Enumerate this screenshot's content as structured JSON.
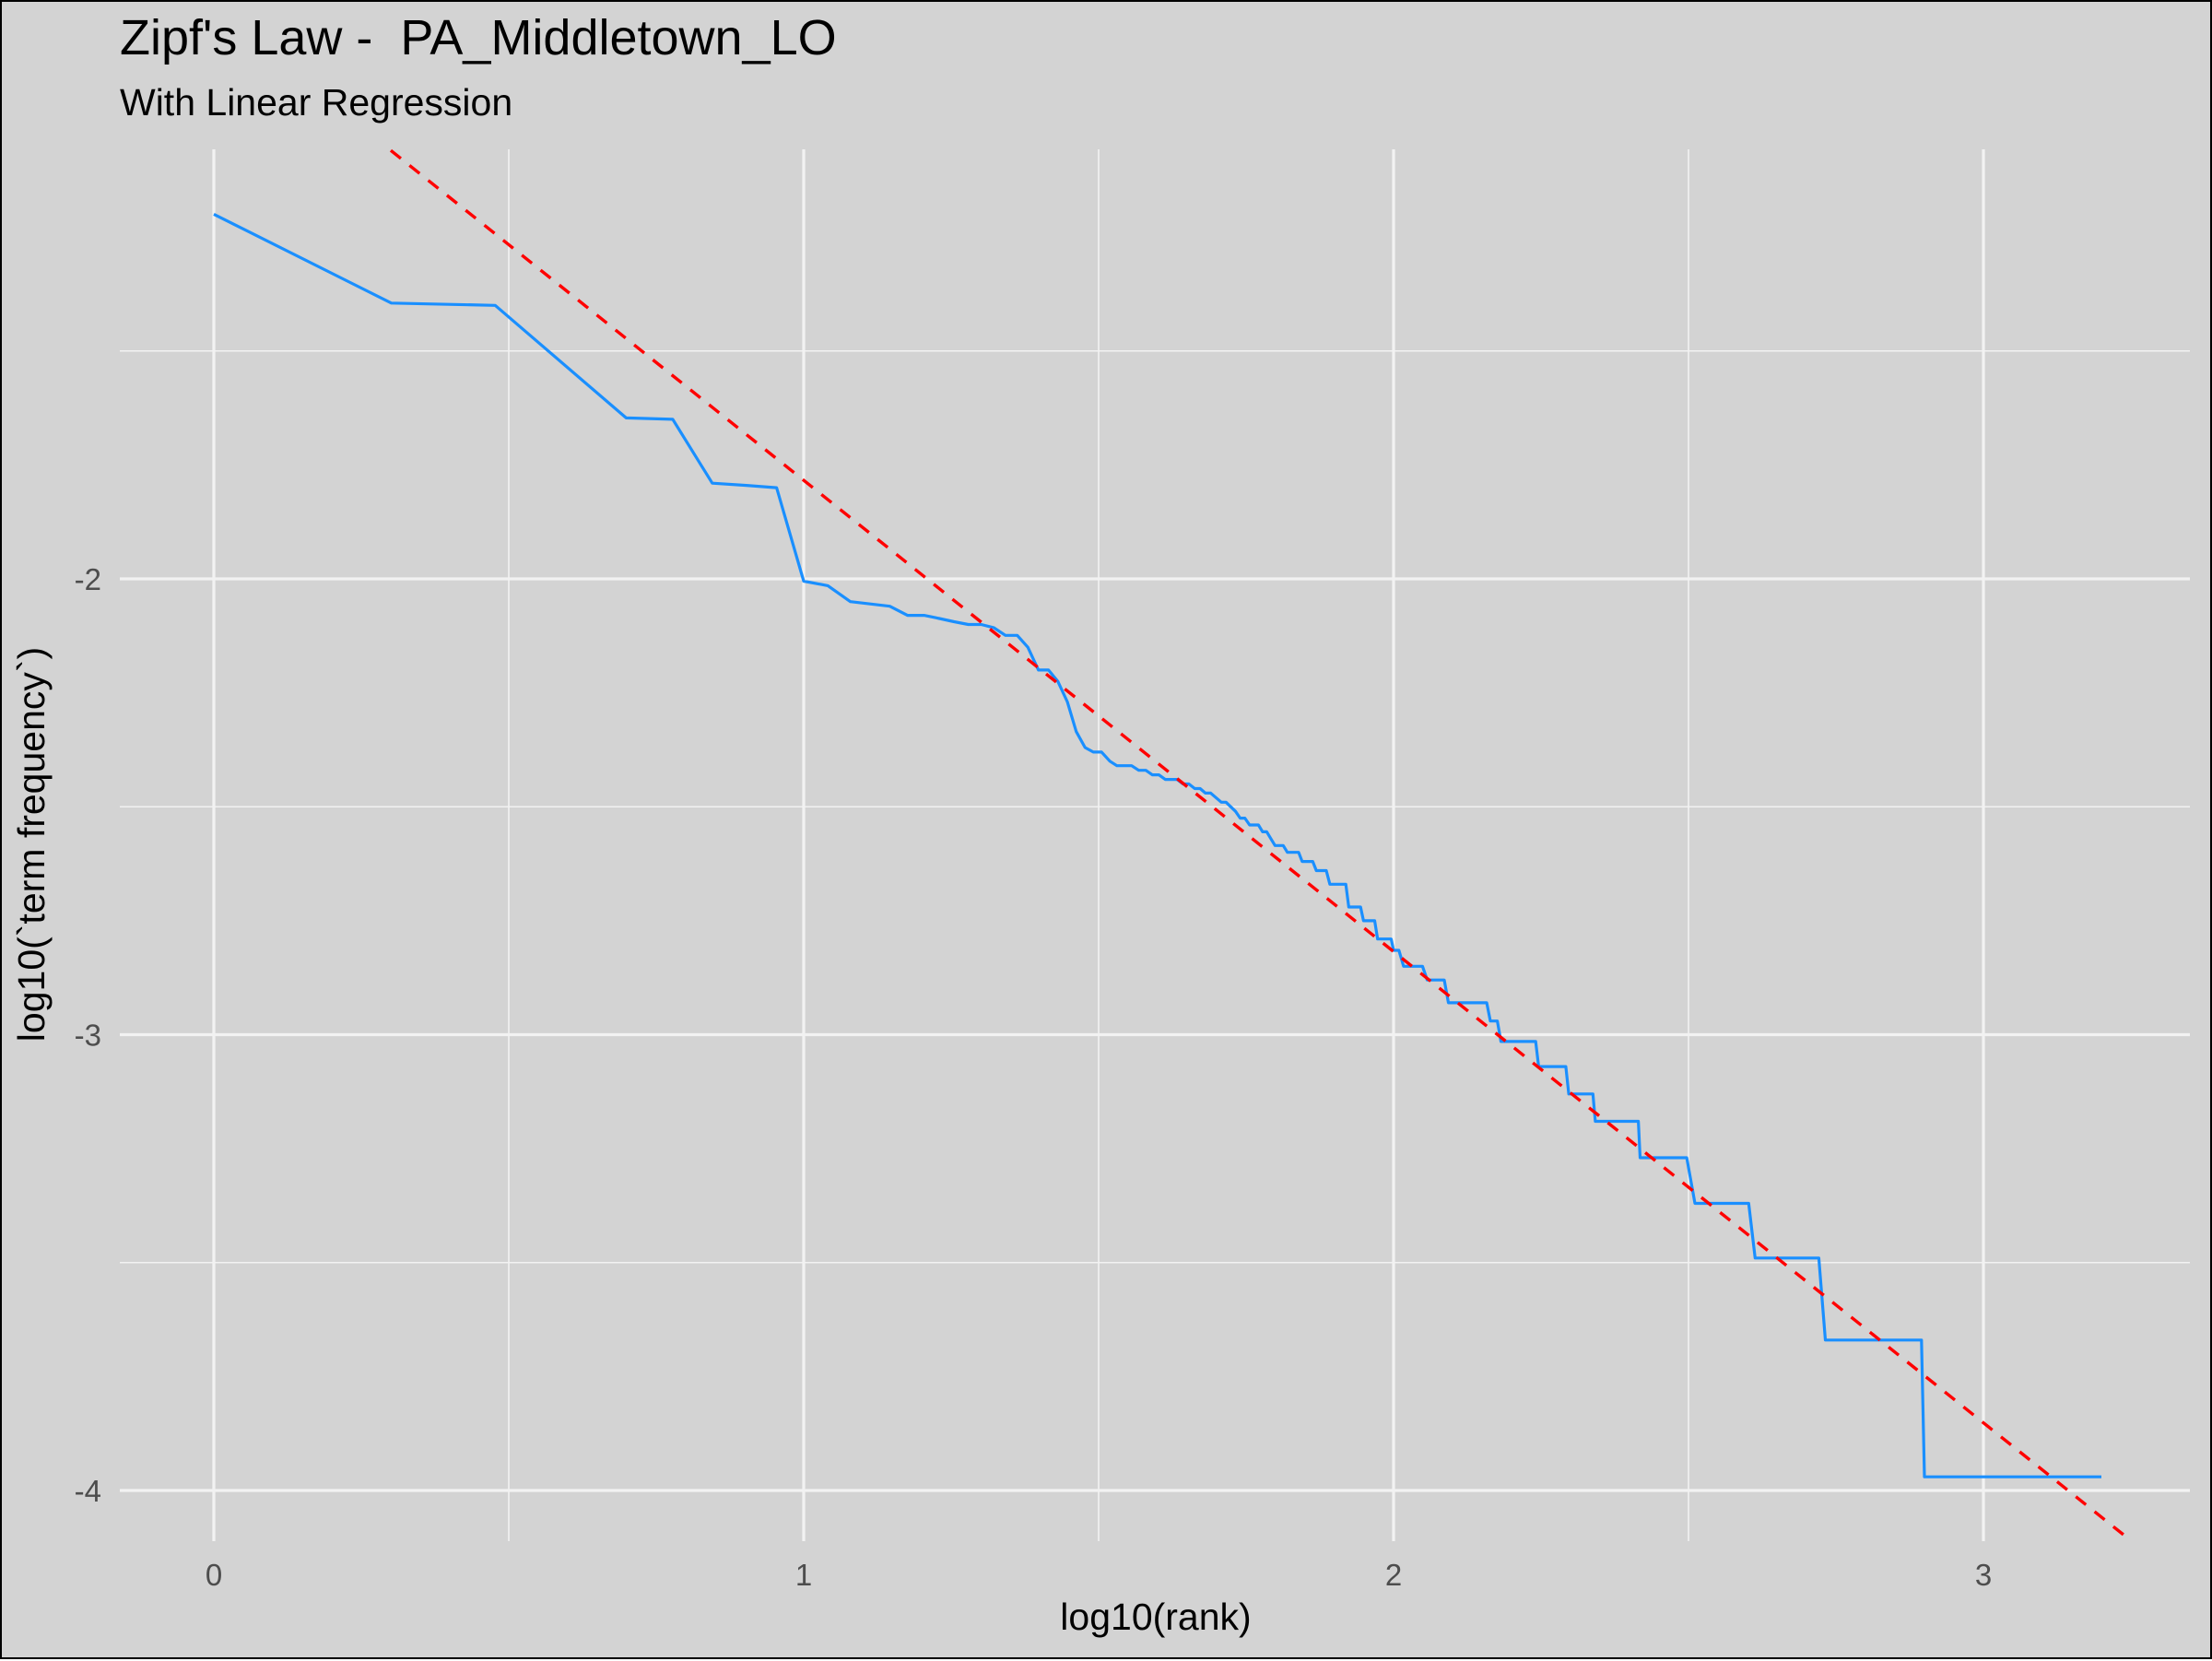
{
  "title": "Zipf's Law -  PA_Middletown_LO",
  "subtitle": "With Linear Regression",
  "colors": {
    "panel_background": "#d3d3d3",
    "grid": "#f2f2f2",
    "series_line": "#1a8fff",
    "regression_line": "#ff0000"
  },
  "chart_data": {
    "type": "line",
    "title": "Zipf's Law -  PA_Middletown_LO",
    "subtitle": "With Linear Regression",
    "xlabel": "log10(rank)",
    "ylabel": "log10(`term frequency`)",
    "xlim": [
      -0.16,
      3.37
    ],
    "ylim": [
      -4.06,
      -1.0
    ],
    "x_ticks": [
      0,
      1,
      2,
      3
    ],
    "x_tick_labels": [
      "0",
      "1",
      "2",
      "3"
    ],
    "y_ticks": [
      -2,
      -3,
      -4
    ],
    "y_tick_labels": [
      "-2",
      "-3",
      "-4"
    ],
    "grid": true,
    "legend": "none",
    "series": [
      {
        "style": "solid",
        "color": "#1a8fff",
        "points": [
          [
            0.0,
            -1.2
          ],
          [
            0.301,
            -1.395
          ],
          [
            0.477,
            -1.4
          ],
          [
            0.699,
            -1.647
          ],
          [
            0.778,
            -1.65
          ],
          [
            0.845,
            -1.79
          ],
          [
            0.903,
            -1.795
          ],
          [
            0.954,
            -1.8
          ],
          [
            1.0,
            -2.005
          ],
          [
            1.041,
            -2.015
          ],
          [
            1.079,
            -2.05
          ],
          [
            1.146,
            -2.06
          ],
          [
            1.176,
            -2.08
          ],
          [
            1.204,
            -2.08
          ],
          [
            1.23,
            -2.087
          ],
          [
            1.255,
            -2.094
          ],
          [
            1.279,
            -2.1
          ],
          [
            1.301,
            -2.1
          ],
          [
            1.322,
            -2.107
          ],
          [
            1.342,
            -2.124
          ],
          [
            1.362,
            -2.124
          ],
          [
            1.38,
            -2.15
          ],
          [
            1.398,
            -2.2
          ],
          [
            1.415,
            -2.2
          ],
          [
            1.431,
            -2.225
          ],
          [
            1.447,
            -2.27
          ],
          [
            1.462,
            -2.335
          ],
          [
            1.477,
            -2.37
          ],
          [
            1.491,
            -2.38
          ],
          [
            1.505,
            -2.38
          ],
          [
            1.519,
            -2.4
          ],
          [
            1.531,
            -2.41
          ],
          [
            1.544,
            -2.41
          ],
          [
            1.556,
            -2.41
          ],
          [
            1.568,
            -2.42
          ],
          [
            1.58,
            -2.42
          ],
          [
            1.591,
            -2.43
          ],
          [
            1.602,
            -2.43
          ],
          [
            1.613,
            -2.44
          ],
          [
            1.623,
            -2.44
          ],
          [
            1.633,
            -2.44
          ],
          [
            1.643,
            -2.45
          ],
          [
            1.653,
            -2.45
          ],
          [
            1.663,
            -2.46
          ],
          [
            1.672,
            -2.46
          ],
          [
            1.681,
            -2.47
          ],
          [
            1.69,
            -2.47
          ],
          [
            1.699,
            -2.48
          ],
          [
            1.708,
            -2.49
          ],
          [
            1.716,
            -2.49
          ],
          [
            1.724,
            -2.5
          ],
          [
            1.732,
            -2.51
          ],
          [
            1.74,
            -2.525
          ],
          [
            1.748,
            -2.525
          ],
          [
            1.756,
            -2.54
          ],
          [
            1.763,
            -2.54
          ],
          [
            1.771,
            -2.54
          ],
          [
            1.778,
            -2.555
          ],
          [
            1.785,
            -2.555
          ],
          [
            1.792,
            -2.57
          ],
          [
            1.799,
            -2.585
          ],
          [
            1.806,
            -2.585
          ],
          [
            1.813,
            -2.585
          ],
          [
            1.82,
            -2.6
          ],
          [
            1.826,
            -2.6
          ],
          [
            1.833,
            -2.6
          ],
          [
            1.839,
            -2.6
          ],
          [
            1.845,
            -2.62
          ],
          [
            1.851,
            -2.62
          ],
          [
            1.857,
            -2.62
          ],
          [
            1.863,
            -2.62
          ],
          [
            1.869,
            -2.64
          ],
          [
            1.875,
            -2.64
          ],
          [
            1.881,
            -2.64
          ],
          [
            1.886,
            -2.64
          ],
          [
            1.892,
            -2.67
          ],
          [
            1.898,
            -2.67
          ],
          [
            1.903,
            -2.67
          ],
          [
            1.908,
            -2.67
          ],
          [
            1.914,
            -2.67
          ],
          [
            1.919,
            -2.67
          ],
          [
            1.924,
            -2.72
          ],
          [
            1.929,
            -2.72
          ],
          [
            1.934,
            -2.72
          ],
          [
            1.94,
            -2.72
          ],
          [
            1.944,
            -2.72
          ],
          [
            1.949,
            -2.75
          ],
          [
            1.954,
            -2.75
          ],
          [
            1.959,
            -2.75
          ],
          [
            1.964,
            -2.75
          ],
          [
            1.968,
            -2.75
          ],
          [
            1.973,
            -2.79
          ],
          [
            1.978,
            -2.79
          ],
          [
            1.982,
            -2.79
          ],
          [
            1.987,
            -2.79
          ],
          [
            1.991,
            -2.79
          ],
          [
            1.996,
            -2.79
          ],
          [
            2.0,
            -2.815
          ],
          [
            2.009,
            -2.815
          ],
          [
            2.017,
            -2.85
          ],
          [
            2.025,
            -2.85
          ],
          [
            2.033,
            -2.85
          ],
          [
            2.041,
            -2.85
          ],
          [
            2.049,
            -2.85
          ],
          [
            2.057,
            -2.88
          ],
          [
            2.064,
            -2.88
          ],
          [
            2.072,
            -2.88
          ],
          [
            2.079,
            -2.88
          ],
          [
            2.086,
            -2.88
          ],
          [
            2.093,
            -2.93
          ],
          [
            2.1,
            -2.93
          ],
          [
            2.107,
            -2.93
          ],
          [
            2.114,
            -2.93
          ],
          [
            2.121,
            -2.93
          ],
          [
            2.127,
            -2.93
          ],
          [
            2.134,
            -2.93
          ],
          [
            2.14,
            -2.93
          ],
          [
            2.146,
            -2.93
          ],
          [
            2.152,
            -2.93
          ],
          [
            2.158,
            -2.93
          ],
          [
            2.164,
            -2.97
          ],
          [
            2.17,
            -2.97
          ],
          [
            2.176,
            -2.97
          ],
          [
            2.182,
            -3.015
          ],
          [
            2.188,
            -3.015
          ],
          [
            2.193,
            -3.015
          ],
          [
            2.199,
            -3.015
          ],
          [
            2.204,
            -3.015
          ],
          [
            2.21,
            -3.015
          ],
          [
            2.215,
            -3.015
          ],
          [
            2.22,
            -3.015
          ],
          [
            2.225,
            -3.015
          ],
          [
            2.23,
            -3.015
          ],
          [
            2.236,
            -3.015
          ],
          [
            2.241,
            -3.015
          ],
          [
            2.246,
            -3.07
          ],
          [
            2.25,
            -3.07
          ],
          [
            2.255,
            -3.07
          ],
          [
            2.26,
            -3.07
          ],
          [
            2.265,
            -3.07
          ],
          [
            2.27,
            -3.07
          ],
          [
            2.274,
            -3.07
          ],
          [
            2.279,
            -3.07
          ],
          [
            2.283,
            -3.07
          ],
          [
            2.288,
            -3.07
          ],
          [
            2.292,
            -3.07
          ],
          [
            2.297,
            -3.13
          ],
          [
            2.301,
            -3.13
          ],
          [
            2.305,
            -3.13
          ],
          [
            2.31,
            -3.13
          ],
          [
            2.314,
            -3.13
          ],
          [
            2.318,
            -3.13
          ],
          [
            2.322,
            -3.13
          ],
          [
            2.326,
            -3.13
          ],
          [
            2.33,
            -3.13
          ],
          [
            2.334,
            -3.13
          ],
          [
            2.338,
            -3.13
          ],
          [
            2.342,
            -3.19
          ],
          [
            2.346,
            -3.19
          ],
          [
            2.35,
            -3.19
          ],
          [
            2.354,
            -3.19
          ],
          [
            2.358,
            -3.19
          ],
          [
            2.362,
            -3.19
          ],
          [
            2.365,
            -3.19
          ],
          [
            2.369,
            -3.19
          ],
          [
            2.373,
            -3.19
          ],
          [
            2.377,
            -3.19
          ],
          [
            2.38,
            -3.19
          ],
          [
            2.384,
            -3.19
          ],
          [
            2.387,
            -3.19
          ],
          [
            2.391,
            -3.19
          ],
          [
            2.394,
            -3.19
          ],
          [
            2.398,
            -3.19
          ],
          [
            2.401,
            -3.19
          ],
          [
            2.405,
            -3.19
          ],
          [
            2.408,
            -3.19
          ],
          [
            2.412,
            -3.19
          ],
          [
            2.415,
            -3.19
          ],
          [
            2.418,
            -3.27
          ],
          [
            2.421,
            -3.27
          ],
          [
            2.425,
            -3.27
          ],
          [
            2.428,
            -3.27
          ],
          [
            2.431,
            -3.27
          ],
          [
            2.497,
            -3.27
          ],
          [
            2.511,
            -3.37
          ],
          [
            2.602,
            -3.37
          ],
          [
            2.613,
            -3.49
          ],
          [
            2.721,
            -3.49
          ],
          [
            2.732,
            -3.67
          ],
          [
            2.895,
            -3.67
          ],
          [
            2.9,
            -3.97
          ],
          [
            3.2,
            -3.97
          ]
        ]
      },
      {
        "name": "",
        "style": "dashed",
        "color": "#ff0000",
        "points": [
          [
            0.3,
            -1.06
          ],
          [
            3.25,
            -4.11
          ]
        ]
      }
    ]
  }
}
